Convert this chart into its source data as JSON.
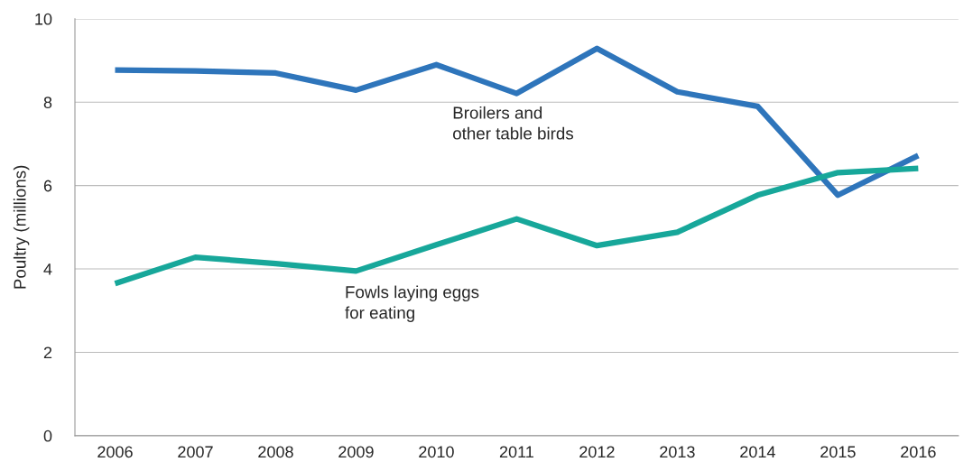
{
  "chart_data": {
    "type": "line",
    "ylabel": "Poultry (millions)",
    "categories": [
      "2006",
      "2007",
      "2008",
      "2009",
      "2010",
      "2011",
      "2012",
      "2013",
      "2014",
      "2015",
      "2016"
    ],
    "series": [
      {
        "name": "Broilers and\nother table birds",
        "color": "#2e75bb",
        "values": [
          8.77,
          8.75,
          8.7,
          8.29,
          8.9,
          8.21,
          9.29,
          8.25,
          7.9,
          5.77,
          6.72
        ]
      },
      {
        "name": "Fowls laying eggs\nfor eating",
        "color": "#17a79a",
        "values": [
          3.65,
          4.28,
          4.13,
          3.95,
          4.58,
          5.2,
          4.56,
          4.88,
          5.77,
          6.31,
          6.41
        ]
      }
    ],
    "ylim": [
      0,
      10
    ],
    "yticks": [
      0,
      2,
      4,
      6,
      8,
      10
    ],
    "grid": "y",
    "legend": false,
    "marker": "none",
    "line_style": "solid"
  }
}
